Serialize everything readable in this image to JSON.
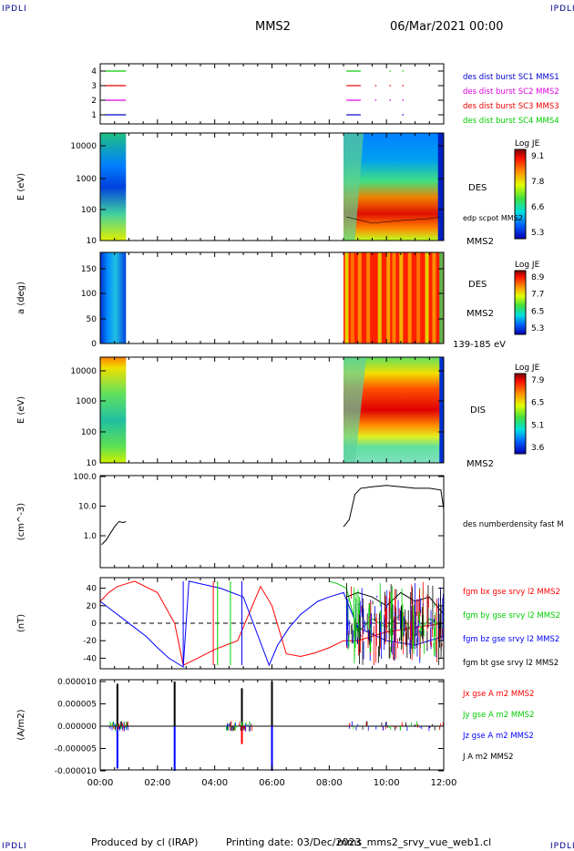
{
  "header": {
    "corner_tag": "IPDLI",
    "spacecraft": "MMS2",
    "date": "06/Mar/2021 00:00"
  },
  "footer": {
    "producer": "Produced by cl (IRAP)",
    "printing_date": "Printing date: 03/Dec/2023",
    "filename": "mms_mms2_srvy_vue_web1.cl"
  },
  "colors": {
    "red": "#ff0000",
    "green": "#00cc00",
    "blue": "#0000ff",
    "magenta": "#dd00dd",
    "black": "#000000"
  },
  "chart_data": [
    {
      "type": "line",
      "panel": "burst-intervals",
      "x_range": [
        0,
        12
      ],
      "y_ticks": [
        "4",
        "3",
        "2",
        "1"
      ],
      "legend": [
        {
          "label": "des dist burst SC1 MMS1",
          "color": "#0000cc"
        },
        {
          "label": "des dist burst SC2 MMS2",
          "color": "#dd00dd"
        },
        {
          "label": "des dist burst SC3 MMS3",
          "color": "#ee0000"
        },
        {
          "label": "des dist burst SC4 MMS4",
          "color": "#00cc00"
        }
      ],
      "series": [
        {
          "level": 4,
          "color": "#00cc00",
          "intervals": [
            [
              0.15,
              0.9
            ],
            [
              8.6,
              9.1
            ],
            [
              10.1,
              10.15
            ],
            [
              10.55,
              10.6
            ],
            [
              11.8,
              11.85
            ]
          ]
        },
        {
          "level": 3,
          "color": "#ee0000",
          "intervals": [
            [
              0.15,
              0.9
            ],
            [
              8.6,
              9.1
            ],
            [
              9.6,
              9.65
            ],
            [
              10.1,
              10.15
            ],
            [
              10.55,
              10.6
            ],
            [
              11.8,
              11.85
            ]
          ]
        },
        {
          "level": 2,
          "color": "#dd00dd",
          "intervals": [
            [
              0.15,
              0.9
            ],
            [
              8.6,
              9.1
            ],
            [
              9.6,
              9.65
            ],
            [
              10.1,
              10.15
            ],
            [
              10.55,
              10.6
            ],
            [
              11.8,
              11.85
            ]
          ]
        },
        {
          "level": 1,
          "color": "#0000cc",
          "intervals": [
            [
              0.15,
              0.9
            ],
            [
              8.6,
              9.1
            ],
            [
              10.55,
              10.6
            ]
          ]
        }
      ]
    },
    {
      "type": "heatmap",
      "panel": "des-energy",
      "ylabel": "E (eV)",
      "y_ticks": [
        "10000",
        "1000",
        "100",
        "10"
      ],
      "right_labels": [
        "DES",
        "edp scpot MMS2",
        "MMS2"
      ],
      "colorbar": {
        "title": "Log JE",
        "ticks": [
          "9.1",
          "7.8",
          "6.6",
          "5.3"
        ]
      },
      "data_intervals": [
        [
          0,
          0.9
        ],
        [
          8.5,
          12
        ]
      ]
    },
    {
      "type": "heatmap",
      "panel": "des-pitch-angle",
      "ylabel": "a (deg)",
      "y_ticks": [
        "150",
        "100",
        "50",
        "0"
      ],
      "right_labels": [
        "DES",
        "MMS2",
        "139-185 eV"
      ],
      "colorbar": {
        "title": "Log JE",
        "ticks": [
          "8.9",
          "7.7",
          "6.5",
          "5.3"
        ]
      },
      "data_intervals": [
        [
          0,
          0.9
        ],
        [
          8.5,
          12
        ]
      ]
    },
    {
      "type": "heatmap",
      "panel": "dis-energy",
      "ylabel": "E (eV)",
      "y_ticks": [
        "10000",
        "1000",
        "100",
        "10"
      ],
      "right_labels": [
        "DIS",
        "MMS2"
      ],
      "colorbar": {
        "title": "Log JE",
        "ticks": [
          "7.9",
          "6.5",
          "5.1",
          "3.6"
        ]
      },
      "data_intervals": [
        [
          0,
          0.9
        ],
        [
          8.5,
          12
        ]
      ]
    },
    {
      "type": "line",
      "panel": "density",
      "ylabel": "(cm^-3)",
      "y_ticks": [
        "100.0",
        "10.0",
        "1.0"
      ],
      "ylim": [
        0.1,
        100
      ],
      "legend": [
        {
          "label": "des numberdensity fast M",
          "color": "#000000"
        }
      ],
      "series": [
        {
          "name": "des numberdensity fast M",
          "color": "#000000",
          "x": [
            0.05,
            0.2,
            0.35,
            0.5,
            0.65,
            0.8,
            0.9,
            8.5,
            8.7,
            8.9,
            9.1,
            9.5,
            10.0,
            10.5,
            11.0,
            11.5,
            11.9,
            12.0
          ],
          "y": [
            0.5,
            0.7,
            1.2,
            2.0,
            3.0,
            2.8,
            3.0,
            2.0,
            3.5,
            25,
            40,
            45,
            50,
            45,
            40,
            40,
            35,
            8
          ]
        }
      ]
    },
    {
      "type": "line",
      "panel": "magnetic-field",
      "ylabel": "(nT)",
      "y_ticks": [
        "40",
        "20",
        "0",
        "-20",
        "-40"
      ],
      "ylim": [
        -50,
        50
      ],
      "legend": [
        {
          "label": "fgm bx gse srvy l2 MMS2",
          "color": "#ff0000"
        },
        {
          "label": "fgm by gse srvy l2 MMS2",
          "color": "#00cc00"
        },
        {
          "label": "fgm bz gse srvy l2 MMS2",
          "color": "#0000ff"
        },
        {
          "label": "fgm bt gse srvy l2 MMS2",
          "color": "#000000"
        }
      ],
      "series": [
        {
          "name": "fgm bx gse srvy l2 MMS2",
          "color": "#ff0000",
          "x": [
            0.0,
            0.3,
            0.6,
            0.9,
            1.2,
            2.0,
            2.6,
            2.9,
            3.4,
            4.0,
            4.8,
            5.6,
            6.0,
            6.5,
            7.0,
            7.5,
            8.0,
            8.5,
            9.0,
            10.0,
            11.0,
            12.0
          ],
          "y": [
            25,
            35,
            42,
            45,
            48,
            35,
            0,
            -48,
            -40,
            -30,
            -20,
            42,
            20,
            -35,
            -38,
            -34,
            -28,
            -20,
            -20,
            -10,
            -5,
            0
          ]
        },
        {
          "name": "fgm bz gse srvy l2 MMS2",
          "color": "#0000ff",
          "x": [
            0.0,
            0.4,
            0.8,
            1.2,
            1.6,
            2.0,
            2.4,
            2.9,
            3.1,
            4.2,
            5.0,
            5.9,
            6.2,
            6.6,
            7.0,
            7.6,
            8.0,
            8.5,
            9.0,
            10.0,
            11.0,
            12.0
          ],
          "y": [
            25,
            15,
            5,
            -5,
            -15,
            -28,
            -40,
            -50,
            48,
            40,
            30,
            -48,
            -25,
            -5,
            10,
            25,
            30,
            35,
            -5,
            -20,
            -25,
            -15
          ]
        },
        {
          "name": "fgm by gse srvy l2 MMS2",
          "color": "#00cc00",
          "x": [
            8.0,
            8.3,
            8.6,
            9.0,
            9.5,
            10.0,
            10.5,
            11.0,
            11.5,
            12.0
          ],
          "y": [
            48,
            45,
            40,
            -10,
            5,
            -5,
            10,
            -15,
            5,
            -5
          ]
        },
        {
          "name": "fgm bt gse srvy l2 MMS2",
          "color": "#000000",
          "x": [
            8.6,
            9.0,
            9.5,
            10.0,
            10.5,
            11.0,
            11.5,
            12.0
          ],
          "y": [
            30,
            35,
            30,
            20,
            35,
            25,
            30,
            10
          ]
        }
      ]
    },
    {
      "type": "line",
      "panel": "current-density",
      "ylabel": "(A/m2)",
      "y_ticks": [
        "0.000010",
        "0.000005",
        "0.000000",
        "-0.000005",
        "-0.000010"
      ],
      "ylim": [
        -1e-05,
        1e-05
      ],
      "x_ticks": [
        "00:00",
        "02:00",
        "04:00",
        "06:00",
        "08:00",
        "10:00",
        "12:00"
      ],
      "legend": [
        {
          "label": "Jx gse A m2 MMS2",
          "color": "#ff0000"
        },
        {
          "label": "Jy gse A m2 MMS2",
          "color": "#00cc00"
        },
        {
          "label": "Jz gse A m2 MMS2",
          "color": "#0000ff"
        },
        {
          "label": "J A m2 MMS2",
          "color": "#000000"
        }
      ],
      "spikes": [
        {
          "x": 0.6,
          "y": 9.5e-06,
          "color": "#000000"
        },
        {
          "x": 0.6,
          "y": -9.5e-06,
          "color": "#0000ff"
        },
        {
          "x": 2.6,
          "y": 1e-05,
          "color": "#000000"
        },
        {
          "x": 2.6,
          "y": -1e-05,
          "color": "#0000ff"
        },
        {
          "x": 4.95,
          "y": 8.5e-06,
          "color": "#000000"
        },
        {
          "x": 4.95,
          "y": -4e-06,
          "color": "#ff0000"
        },
        {
          "x": 6.0,
          "y": 1e-05,
          "color": "#000000"
        },
        {
          "x": 6.0,
          "y": -1e-05,
          "color": "#0000ff"
        }
      ]
    }
  ]
}
